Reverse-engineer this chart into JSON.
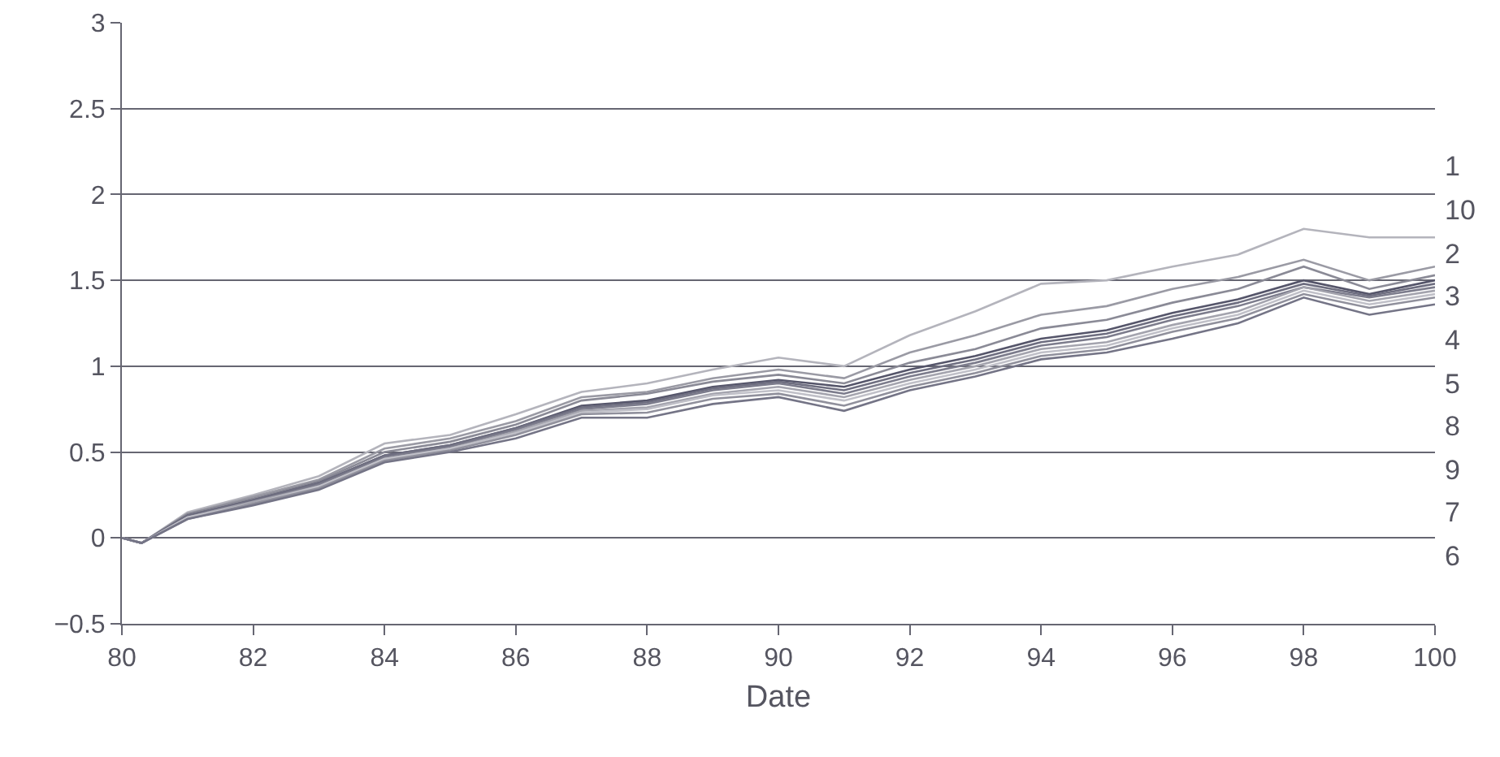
{
  "chart_data": {
    "type": "line",
    "xlabel": "Date",
    "x": [
      80,
      80.3,
      81,
      82,
      83,
      84,
      85,
      86,
      87,
      88,
      89,
      90,
      91,
      92,
      93,
      94,
      95,
      96,
      97,
      98,
      99,
      100
    ],
    "xlim": [
      80,
      100
    ],
    "xticks": [
      80,
      82,
      84,
      86,
      88,
      90,
      92,
      94,
      96,
      98,
      100
    ],
    "ylim": [
      -0.5,
      3
    ],
    "yticks": [
      {
        "value": -0.5,
        "label": "−0.5"
      },
      0,
      0.5,
      1,
      1.5,
      2,
      2.5,
      3
    ],
    "grid": "y",
    "line_style": "solid",
    "marker": "none",
    "series": [
      {
        "name": "1",
        "color": "#b4b4bc",
        "values": [
          0,
          -0.03,
          0.15,
          0.25,
          0.36,
          0.55,
          0.6,
          0.72,
          0.85,
          0.9,
          0.98,
          1.05,
          1.0,
          1.18,
          1.32,
          1.48,
          1.5,
          1.58,
          1.65,
          1.8,
          1.75,
          1.75
        ]
      },
      {
        "name": "10",
        "color": "#9a9aa4",
        "values": [
          0,
          -0.03,
          0.14,
          0.24,
          0.34,
          0.52,
          0.58,
          0.68,
          0.82,
          0.85,
          0.93,
          0.98,
          0.93,
          1.08,
          1.18,
          1.3,
          1.35,
          1.45,
          1.52,
          1.62,
          1.5,
          1.58
        ]
      },
      {
        "name": "2",
        "color": "#8a8a96",
        "values": [
          0,
          -0.03,
          0.14,
          0.23,
          0.33,
          0.5,
          0.56,
          0.66,
          0.8,
          0.84,
          0.91,
          0.95,
          0.9,
          1.02,
          1.1,
          1.22,
          1.27,
          1.37,
          1.45,
          1.58,
          1.45,
          1.53
        ]
      },
      {
        "name": "3",
        "color": "#55556a",
        "values": [
          0,
          -0.03,
          0.13,
          0.22,
          0.32,
          0.48,
          0.54,
          0.64,
          0.77,
          0.8,
          0.88,
          0.92,
          0.88,
          0.98,
          1.06,
          1.16,
          1.21,
          1.31,
          1.39,
          1.5,
          1.42,
          1.5
        ]
      },
      {
        "name": "4",
        "color": "#6e6e80",
        "values": [
          0,
          -0.03,
          0.13,
          0.22,
          0.32,
          0.48,
          0.54,
          0.64,
          0.76,
          0.79,
          0.87,
          0.91,
          0.86,
          0.96,
          1.04,
          1.14,
          1.19,
          1.29,
          1.37,
          1.48,
          1.41,
          1.48
        ]
      },
      {
        "name": "5",
        "color": "#7c7c8c",
        "values": [
          0,
          -0.03,
          0.12,
          0.21,
          0.31,
          0.47,
          0.53,
          0.63,
          0.75,
          0.78,
          0.86,
          0.9,
          0.84,
          0.94,
          1.02,
          1.12,
          1.17,
          1.27,
          1.35,
          1.46,
          1.4,
          1.46
        ]
      },
      {
        "name": "8",
        "color": "#a4a4ae",
        "values": [
          0,
          -0.03,
          0.12,
          0.21,
          0.3,
          0.46,
          0.52,
          0.62,
          0.74,
          0.76,
          0.84,
          0.88,
          0.82,
          0.92,
          1.0,
          1.1,
          1.14,
          1.24,
          1.32,
          1.46,
          1.38,
          1.44
        ]
      },
      {
        "name": "9",
        "color": "#c0c0c8",
        "values": [
          0,
          -0.03,
          0.12,
          0.2,
          0.3,
          0.46,
          0.52,
          0.61,
          0.73,
          0.75,
          0.83,
          0.86,
          0.8,
          0.9,
          0.98,
          1.08,
          1.12,
          1.22,
          1.3,
          1.44,
          1.36,
          1.42
        ]
      },
      {
        "name": "7",
        "color": "#90909c",
        "values": [
          0,
          -0.03,
          0.11,
          0.2,
          0.29,
          0.45,
          0.51,
          0.6,
          0.72,
          0.73,
          0.81,
          0.84,
          0.77,
          0.88,
          0.96,
          1.06,
          1.1,
          1.2,
          1.28,
          1.42,
          1.34,
          1.4
        ]
      },
      {
        "name": "6",
        "color": "#747486",
        "values": [
          0,
          -0.03,
          0.11,
          0.19,
          0.28,
          0.44,
          0.5,
          0.58,
          0.7,
          0.7,
          0.78,
          0.82,
          0.74,
          0.86,
          0.94,
          1.04,
          1.08,
          1.16,
          1.25,
          1.4,
          1.3,
          1.36
        ]
      }
    ]
  }
}
